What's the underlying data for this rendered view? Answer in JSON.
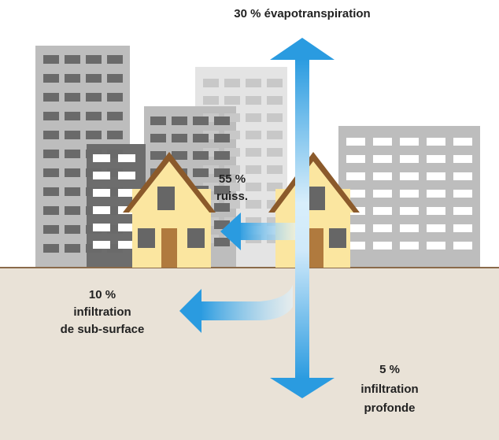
{
  "labels": [
    {
      "lines": [
        "30 % évapotranspiration"
      ]
    },
    {
      "lines": [
        "55 %",
        "ruiss."
      ]
    },
    {
      "lines": [
        "10 %",
        "infiltration",
        "de sub-surface"
      ]
    },
    {
      "lines": [
        "5 %",
        "infiltration",
        "profonde"
      ]
    }
  ]
}
